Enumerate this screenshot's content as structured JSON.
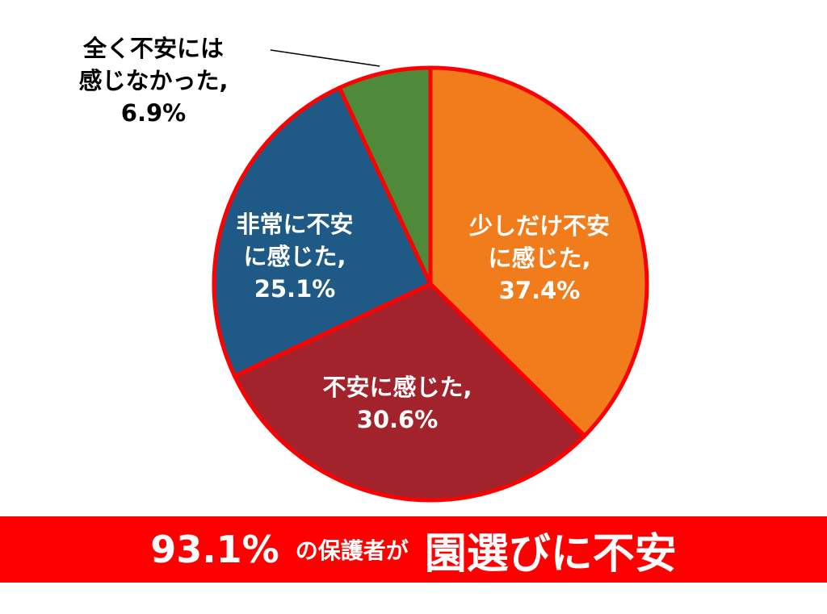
{
  "chart_data": {
    "type": "pie",
    "categories": [
      "少しだけ不安\nに感じた,",
      "不安に感じた,",
      "非常に不安\nに感じた,",
      "全く不安には\n感じなかった,"
    ],
    "values": [
      37.4,
      30.6,
      25.1,
      6.9
    ],
    "value_labels": [
      "37.4%",
      "30.6%",
      "25.1%",
      "6.9%"
    ],
    "colors": [
      "#f07c1c",
      "#a3232d",
      "#1f5a86",
      "#4f8a3b"
    ],
    "edge_color": "#ff0000",
    "banner": {
      "percent": "93.1%",
      "middle": "の保護者が",
      "emphasis": "園選びに不安"
    }
  }
}
